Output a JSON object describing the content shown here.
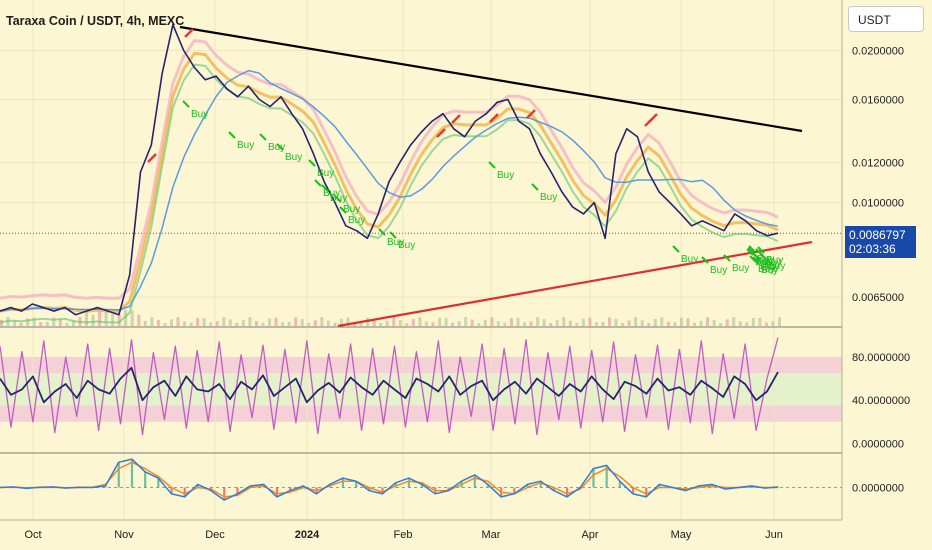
{
  "header": {
    "title": "Taraxa Coin / USDT, 4h, MEXC"
  },
  "toolbar": {
    "currency": "USDT"
  },
  "price_tag": {
    "price": "0.0086797",
    "countdown": "02:03:36"
  },
  "colors": {
    "background": "#fdf6d3",
    "price_line": "#27236f",
    "buy_signal": "#19c11c",
    "sell_signal": "#e53935",
    "resistance": "#000000",
    "support": "#e02d2d",
    "price_tag": "#1849a9",
    "stoch_k": "#27236f",
    "stoch_d": "#b84fc1",
    "band": "#f0c8d8",
    "mid_band": "#d8f0c8"
  },
  "chart_data": [
    {
      "type": "line",
      "panel": "price",
      "x_ticks": [
        "Oct",
        "Nov",
        "Dec",
        "2024",
        "Feb",
        "Mar",
        "Apr",
        "May",
        "Jun"
      ],
      "y_ticks": [
        "0.0200000",
        "0.0160000",
        "0.0120000",
        "0.0100000",
        "0.0065000"
      ],
      "y_tick_values": [
        0.02,
        0.016,
        0.012,
        0.01,
        0.0065
      ],
      "ylim": [
        0.0057,
        0.0245
      ],
      "scale": "log",
      "series": [
        {
          "name": "",
          "values": [
            0.0061,
            0.0062,
            0.0061,
            0.0063,
            0.0062,
            0.0061,
            0.0062,
            0.006,
            0.0061,
            0.0062,
            0.0061,
            0.006,
            0.0072,
            0.0115,
            0.013,
            0.018,
            0.0225,
            0.02,
            0.0185,
            0.0175,
            0.0178,
            0.0168,
            0.0162,
            0.017,
            0.016,
            0.0155,
            0.0162,
            0.015,
            0.014,
            0.0125,
            0.011,
            0.01,
            0.009,
            0.0088,
            0.0085,
            0.0095,
            0.011,
            0.012,
            0.013,
            0.0138,
            0.0145,
            0.015,
            0.014,
            0.0135,
            0.0145,
            0.015,
            0.0158,
            0.016,
            0.0145,
            0.014,
            0.0125,
            0.0115,
            0.0105,
            0.0098,
            0.0095,
            0.01,
            0.0085,
            0.0125,
            0.014,
            0.0135,
            0.0115,
            0.0105,
            0.01,
            0.0095,
            0.009,
            0.0092,
            0.009,
            0.0088,
            0.0095,
            0.0092,
            0.0088,
            0.0086,
            0.0087
          ]
        }
      ]
    },
    {
      "type": "line",
      "panel": "stochastic",
      "y_ticks": [
        "80.0000000",
        "40.0000000",
        "0.0000000"
      ],
      "y_tick_values": [
        80,
        40,
        0
      ],
      "ylim": [
        -8,
        105
      ],
      "series": [
        {
          "name": "",
          "values": [
            60,
            45,
            50,
            62,
            38,
            48,
            55,
            42,
            58,
            50,
            46,
            60,
            70,
            40,
            52,
            58,
            44,
            62,
            50,
            48,
            55,
            41,
            57,
            50,
            63,
            44,
            52,
            60,
            38,
            49,
            56,
            47,
            61,
            52,
            45,
            58,
            50,
            42,
            60,
            55,
            48,
            62,
            45,
            53,
            58,
            40,
            50,
            57,
            46,
            60,
            52,
            44,
            55,
            48,
            62,
            50,
            41,
            57,
            53,
            46,
            60,
            49,
            52,
            45,
            58,
            51,
            43,
            62,
            55,
            40,
            48,
            66
          ]
        },
        {
          "name": "",
          "values": [
            90,
            15,
            85,
            20,
            95,
            10,
            80,
            25,
            92,
            12,
            88,
            18,
            96,
            8,
            84,
            22,
            90,
            14,
            86,
            20,
            94,
            11,
            82,
            24,
            91,
            13,
            87,
            19,
            95,
            9,
            83,
            23,
            92,
            12,
            88,
            18,
            90,
            15,
            85,
            20,
            95,
            10,
            80,
            25,
            92,
            12,
            88,
            18,
            96,
            8,
            84,
            22,
            90,
            14,
            86,
            20,
            94,
            11,
            82,
            24,
            91,
            13,
            87,
            19,
            95,
            9,
            83,
            23,
            92,
            12,
            60,
            98
          ]
        }
      ]
    },
    {
      "type": "line",
      "panel": "macd",
      "y_ticks": [
        "0.0000000"
      ],
      "y_tick_values": [
        0
      ],
      "ylim": [
        -1,
        1
      ],
      "series": [
        {
          "name": "",
          "values": [
            0,
            0.02,
            -0.03,
            0.01,
            0.02,
            -0.02,
            0.01,
            0.0,
            0.05,
            0.8,
            0.9,
            0.5,
            0.3,
            -0.2,
            -0.3,
            0.1,
            -0.1,
            -0.4,
            -0.2,
            0.05,
            0.1,
            -0.3,
            -0.1,
            0.05,
            -0.2,
            0.1,
            0.3,
            0.2,
            -0.1,
            -0.2,
            0.15,
            0.3,
            0.1,
            -0.2,
            -0.1,
            0.2,
            0.4,
            0.1,
            -0.3,
            -0.2,
            0.1,
            0.2,
            -0.1,
            -0.3,
            0.0,
            0.6,
            0.7,
            0.2,
            -0.2,
            -0.3,
            0.1,
            0.0,
            -0.1,
            0.05,
            0.1,
            -0.05,
            0.0,
            0.05,
            -0.02,
            0.02
          ]
        },
        {
          "name": "",
          "values": [
            0,
            0.01,
            -0.01,
            0.0,
            0.01,
            -0.01,
            0.0,
            0.01,
            0.1,
            0.6,
            0.8,
            0.6,
            0.35,
            0.0,
            -0.2,
            0.0,
            -0.05,
            -0.3,
            -0.25,
            0.0,
            0.05,
            -0.2,
            -0.15,
            0.0,
            -0.1,
            0.05,
            0.2,
            0.2,
            0.0,
            -0.15,
            0.05,
            0.2,
            0.15,
            -0.1,
            -0.1,
            0.1,
            0.3,
            0.2,
            -0.15,
            -0.2,
            0.0,
            0.15,
            0.0,
            -0.2,
            -0.05,
            0.4,
            0.6,
            0.35,
            0.0,
            -0.2,
            0.0,
            0.0,
            -0.05,
            0.0,
            0.05,
            0.0,
            0.0,
            0.02,
            0.0,
            0.0
          ]
        }
      ]
    }
  ],
  "annotations": {
    "buy_labels": [
      "Buy",
      "Buy",
      "Buy",
      "Buy",
      "Buy",
      "Buy",
      "Buy",
      "Buy",
      "Buy",
      "Buy",
      "Buy",
      "Buy",
      "Buy",
      "Buy",
      "Buy",
      "Buy",
      "Buy",
      "Buy",
      "Buy",
      "Buy",
      "Buy",
      "Buy",
      "Buy",
      "Buy",
      "Buy",
      "Buy"
    ]
  }
}
